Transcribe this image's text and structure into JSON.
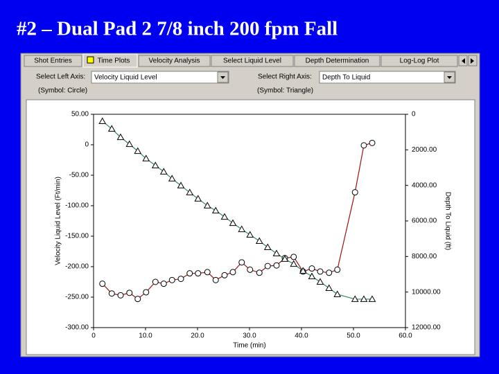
{
  "title": "#2 – Dual Pad 2 7/8 inch 200 fpm Fall",
  "tabs": [
    "Shot Entries",
    "Time Plots",
    "Velocity Analysis",
    "Select Liquid Level",
    "Depth Determination",
    "Log-Log Plot"
  ],
  "controls": {
    "left_label": "Select Left Axis:",
    "left_value": "Velocity Liquid Level",
    "right_label": "Select Right Axis:",
    "right_value": "Depth To Liquid",
    "left_symbol": "(Symbol: Circle)",
    "right_symbol": "(Symbol: Triangle)"
  },
  "chart_data": {
    "type": "line",
    "x_label": "Time (min)",
    "y_label": "Velocity Liquid Level (Ft/min)",
    "y2_label": "Depth To Liquid (ft)",
    "x": [
      1.7,
      3.5,
      5.2,
      6.9,
      8.5,
      10.1,
      11.9,
      13.5,
      15.1,
      16.8,
      18.5,
      20.1,
      21.9,
      23.5,
      25.2,
      26.8,
      28.5,
      30.1,
      31.9,
      33.5,
      35.2,
      36.8,
      38.5,
      40.3,
      42.0,
      43.6,
      45.3,
      46.9,
      50.3,
      52.0,
      53.6
    ],
    "series": [
      {
        "name": "Velocity Liquid Level",
        "color": "#a01010",
        "marker": "circle",
        "values": [
          -228,
          -244,
          -247,
          -243,
          -253,
          -242,
          -225,
          -228,
          -222,
          -220,
          -211,
          -211,
          -209,
          -222,
          -214,
          -209,
          -193,
          -205,
          -210,
          -199,
          -198,
          -186,
          -184,
          -208,
          -203,
          -208,
          -210,
          -205,
          -78,
          -1,
          3
        ]
      },
      {
        "name": "Depth To Liquid",
        "color": "#2e8b57",
        "marker": "triangle",
        "axis": "y2",
        "values": [
          390,
          820,
          1290,
          1680,
          2070,
          2490,
          2880,
          3230,
          3620,
          4010,
          4400,
          4750,
          5140,
          5420,
          5770,
          6120,
          6470,
          6780,
          7130,
          7480,
          7830,
          8140,
          8420,
          8810,
          9120,
          9430,
          9780,
          10130,
          10400,
          10400,
          10400
        ]
      }
    ],
    "xlim": [
      0,
      60
    ],
    "xticks": [
      0,
      {
        "value": 10,
        "label": "10.0"
      },
      {
        "value": 20,
        "label": "20.0"
      },
      {
        "value": 30,
        "label": "30.0"
      },
      {
        "value": 40,
        "label": "40.0"
      },
      {
        "value": 50,
        "label": "50.0"
      },
      {
        "value": 60,
        "label": "60.0"
      }
    ],
    "ylim": [
      -300,
      50
    ],
    "yticks": [
      {
        "value": 50,
        "label": "50.00"
      },
      0,
      {
        "value": -50,
        "label": "-50.00"
      },
      {
        "value": -100,
        "label": "-100.00"
      },
      {
        "value": -150,
        "label": "-150.00"
      },
      {
        "value": -200,
        "label": "-200.00"
      },
      {
        "value": -250,
        "label": "-250.00"
      },
      {
        "value": -300,
        "label": "-300.00"
      }
    ],
    "y2lim": [
      12000,
      0
    ],
    "y2ticks": [
      0,
      {
        "value": 2000,
        "label": "2000.00"
      },
      {
        "value": 4000,
        "label": "4000.00"
      },
      {
        "value": 6000,
        "label": "6000.00"
      },
      {
        "value": 8000,
        "label": "8000.00"
      },
      {
        "value": 10000,
        "label": "10000.00"
      },
      {
        "value": 12000,
        "label": "12000.00"
      }
    ]
  }
}
